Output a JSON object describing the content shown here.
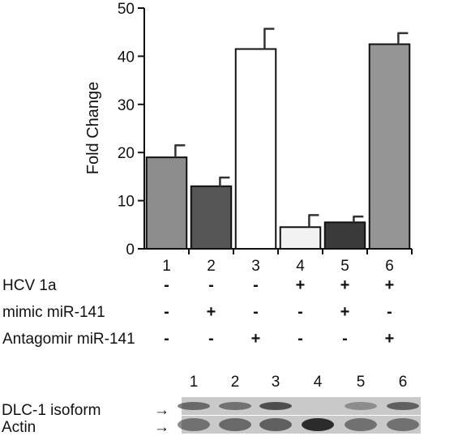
{
  "chart_data": {
    "type": "bar",
    "ylabel": "Fold Change",
    "ylim": [
      0,
      50
    ],
    "yticks": [
      0,
      10,
      20,
      30,
      40,
      50
    ],
    "categories": [
      "1",
      "2",
      "3",
      "4",
      "5",
      "6"
    ],
    "values": [
      19,
      13,
      41.5,
      4.5,
      5.5,
      42.5
    ],
    "errors": [
      2.5,
      1.8,
      4.2,
      2.5,
      1.2,
      2.3
    ],
    "bar_colors": [
      "#8c8c8c",
      "#555555",
      "#ffffff",
      "#f2f2f2",
      "#3a3a3a",
      "#959595"
    ],
    "error_bar_color": "#333333",
    "grid": false
  },
  "conditions": [
    {
      "label": "HCV 1a",
      "signs": [
        "-",
        "-",
        "-",
        "+",
        "+",
        "+"
      ]
    },
    {
      "label": "mimic miR-141",
      "signs": [
        "-",
        "+",
        "-",
        "-",
        "+",
        "-"
      ]
    },
    {
      "label": "Antagomir miR-141",
      "signs": [
        "-",
        "-",
        "+",
        "-",
        "-",
        "+"
      ]
    }
  ],
  "blot": {
    "lanes": [
      "1",
      "2",
      "3",
      "4",
      "5",
      "6"
    ],
    "rows": [
      {
        "label": "DLC-1 isoform",
        "arrow": "→",
        "intensity": [
          0.55,
          0.5,
          0.7,
          0.0,
          0.35,
          0.6
        ]
      },
      {
        "label": "Actin",
        "arrow": "→",
        "intensity": [
          0.5,
          0.55,
          0.6,
          0.9,
          0.5,
          0.5
        ]
      }
    ]
  }
}
